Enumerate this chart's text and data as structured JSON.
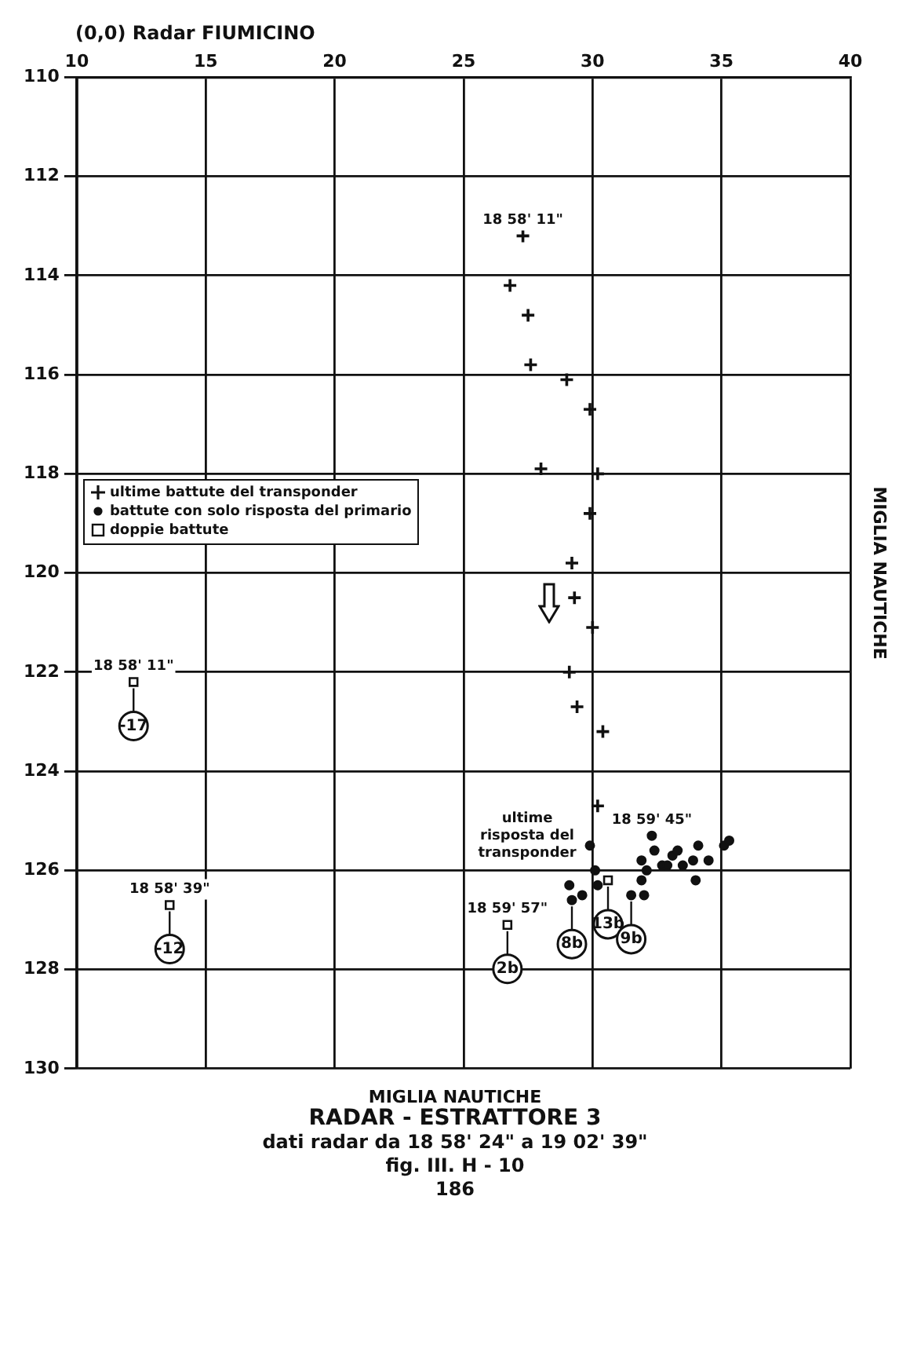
{
  "chart_data": {
    "type": "scatter",
    "title": "(0,0) Radar FIUMICINO",
    "xlabel": "MIGLIA NAUTICHE",
    "ylabel": "MIGLIA NAUTICHE",
    "xlim": [
      10,
      40
    ],
    "xticks": [
      10,
      15,
      20,
      25,
      30,
      35,
      40
    ],
    "ylim": [
      130,
      110
    ],
    "yticks": [
      110,
      112,
      114,
      116,
      118,
      120,
      122,
      124,
      126,
      128,
      130
    ],
    "grid": true,
    "legend": "left",
    "series": [
      {
        "name": "ultime battute del transponder",
        "color": "#111111",
        "marker": "cross",
        "x": [
          27.3,
          26.8,
          27.5,
          27.6,
          29.0,
          29.9,
          28.0,
          30.2,
          29.9,
          29.2,
          29.3,
          30.0,
          29.1,
          29.4,
          30.4,
          30.2
        ],
        "values": [
          113.2,
          114.2,
          114.8,
          115.8,
          116.1,
          116.7,
          117.9,
          118.0,
          118.8,
          119.8,
          120.5,
          121.1,
          122.0,
          122.7,
          123.2,
          124.7
        ]
      },
      {
        "name": "battute con solo risposta del primario",
        "color": "#111111",
        "marker": "circle",
        "x": [
          29.9,
          32.3,
          30.1,
          29.1,
          29.2,
          29.6,
          30.2,
          31.5,
          32.0,
          31.9,
          32.1,
          31.9,
          32.4,
          32.7,
          33.1,
          33.3,
          33.5,
          33.9,
          34.1,
          34.0,
          34.5,
          35.1,
          35.3,
          32.9
        ],
        "values": [
          125.5,
          125.3,
          126.0,
          126.3,
          126.6,
          126.5,
          126.3,
          126.5,
          126.5,
          126.2,
          126.0,
          125.8,
          125.6,
          125.9,
          125.7,
          125.6,
          125.9,
          125.8,
          125.5,
          126.2,
          125.8,
          125.5,
          125.4,
          125.9
        ]
      },
      {
        "name": "doppie battute",
        "color": "#111111",
        "marker": "square",
        "x": [
          12.2,
          13.6,
          26.7,
          30.6
        ],
        "values": [
          122.2,
          126.7,
          127.1,
          126.2
        ]
      }
    ],
    "annotations": [
      {
        "text": "18 58' 11\"",
        "x": 27.3,
        "y": 113.2
      },
      {
        "text": "ultime risposta del transponder",
        "x": 29.9,
        "y": 125.5
      },
      {
        "text": "18 59' 45\"",
        "x": 32.3,
        "y": 125.3
      },
      {
        "text": "18 58' 11\"",
        "x": 12.2,
        "y": 122.2
      },
      {
        "text": "-17",
        "x": 12.2,
        "y": 122.2
      },
      {
        "text": "18 58' 39\"",
        "x": 13.6,
        "y": 126.7
      },
      {
        "text": "-12",
        "x": 13.6,
        "y": 126.7
      },
      {
        "text": "18 59' 57\"",
        "x": 26.7,
        "y": 127.1
      },
      {
        "text": "2b",
        "x": 26.7,
        "y": 127.1
      },
      {
        "text": "8b",
        "x": 29.2,
        "y": 126.6
      },
      {
        "text": "13b",
        "x": 30.6,
        "y": 126.2
      },
      {
        "text": "9b",
        "x": 31.5,
        "y": 126.5
      },
      "RADAR - ESTRATTORE 3",
      "dati radar da 18 58' 24\" a 19 02' 39\"",
      "fig. III. H - 10",
      "186"
    ]
  }
}
